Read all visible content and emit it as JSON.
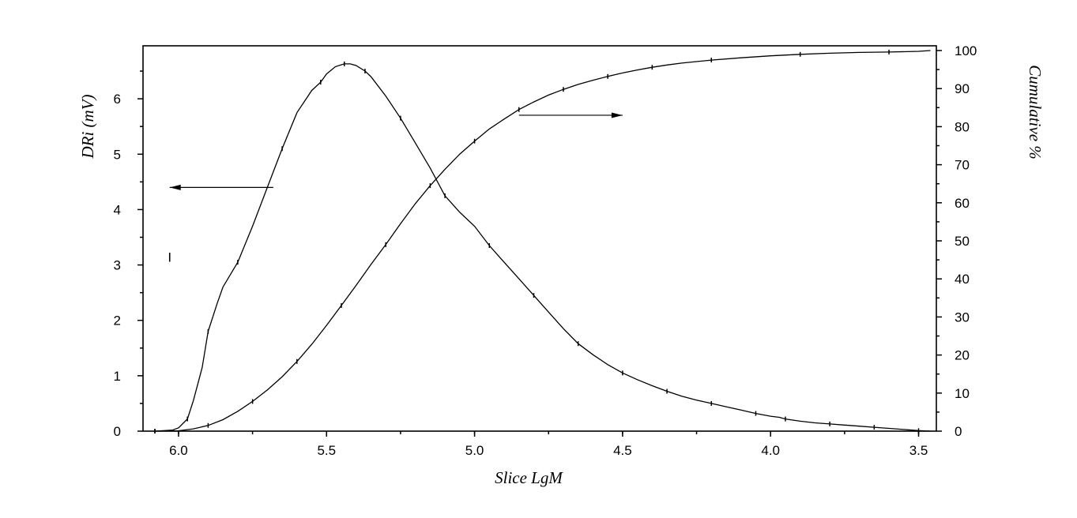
{
  "chart_data": {
    "type": "line",
    "xlabel": "Slice LgM",
    "ylabel_left": "DRi (mV)",
    "ylabel_right": "Cumulative %",
    "x_reversed": true,
    "xlim": [
      6.12,
      3.44
    ],
    "ylim_left": [
      0,
      6.8
    ],
    "ylim_right": [
      0,
      100
    ],
    "xticks": [
      6.0,
      5.5,
      5.0,
      4.5,
      4.0,
      3.5
    ],
    "xtick_labels": [
      "6.0",
      "5.5",
      "5.0",
      "4.5",
      "4.0",
      "3.5"
    ],
    "yticks_left": [
      0,
      1,
      2,
      3,
      4,
      5,
      6
    ],
    "ytick_labels_left": [
      "0",
      "1",
      "2",
      "3",
      "4",
      "5",
      "6"
    ],
    "yticks_right": [
      0,
      10,
      20,
      30,
      40,
      50,
      60,
      70,
      80,
      90,
      100
    ],
    "ytick_labels_right": [
      "0",
      "10",
      "20",
      "30",
      "40",
      "50",
      "60",
      "70",
      "80",
      "90",
      "100"
    ],
    "grid": false,
    "legend": "none",
    "annotations": [
      {
        "text": "I",
        "x": 6.03,
        "y_left": 3.2
      }
    ],
    "arrows": [
      {
        "points_to": "left axis",
        "from": [
          5.68,
          4.4
        ],
        "to": [
          6.03,
          4.4
        ],
        "axis": "left"
      },
      {
        "points_to": "right axis",
        "from": [
          4.85,
          83
        ],
        "to": [
          4.5,
          83
        ],
        "axis": "right"
      }
    ],
    "series": [
      {
        "axis": "left",
        "x": [
          6.08,
          6.02,
          6.0,
          5.97,
          5.95,
          5.92,
          5.9,
          5.87,
          5.85,
          5.8,
          5.75,
          5.7,
          5.65,
          5.6,
          5.55,
          5.52,
          5.5,
          5.47,
          5.44,
          5.42,
          5.4,
          5.37,
          5.35,
          5.3,
          5.25,
          5.2,
          5.15,
          5.1,
          5.05,
          5.0,
          4.95,
          4.9,
          4.85,
          4.8,
          4.75,
          4.7,
          4.65,
          4.6,
          4.55,
          4.5,
          4.45,
          4.4,
          4.35,
          4.3,
          4.25,
          4.2,
          4.15,
          4.1,
          4.05,
          4.0,
          3.97,
          3.95,
          3.9,
          3.85,
          3.8,
          3.75,
          3.7,
          3.65,
          3.6,
          3.55,
          3.5,
          3.46
        ],
        "values": [
          0.0,
          0.02,
          0.06,
          0.22,
          0.55,
          1.15,
          1.8,
          2.3,
          2.6,
          3.05,
          3.7,
          4.4,
          5.1,
          5.75,
          6.15,
          6.3,
          6.45,
          6.58,
          6.63,
          6.63,
          6.6,
          6.5,
          6.4,
          6.05,
          5.65,
          5.2,
          4.75,
          4.25,
          3.95,
          3.7,
          3.35,
          3.05,
          2.75,
          2.45,
          2.15,
          1.85,
          1.58,
          1.38,
          1.2,
          1.05,
          0.93,
          0.82,
          0.72,
          0.63,
          0.56,
          0.5,
          0.44,
          0.38,
          0.32,
          0.27,
          0.25,
          0.22,
          0.18,
          0.15,
          0.13,
          0.11,
          0.09,
          0.07,
          0.05,
          0.03,
          0.01,
          0.0
        ]
      },
      {
        "axis": "right",
        "x": [
          6.08,
          6.0,
          5.95,
          5.9,
          5.85,
          5.8,
          5.75,
          5.7,
          5.65,
          5.6,
          5.55,
          5.5,
          5.45,
          5.4,
          5.35,
          5.3,
          5.25,
          5.2,
          5.15,
          5.1,
          5.05,
          5.0,
          4.95,
          4.9,
          4.85,
          4.8,
          4.75,
          4.7,
          4.65,
          4.6,
          4.55,
          4.5,
          4.45,
          4.4,
          4.35,
          4.3,
          4.2,
          4.1,
          4.0,
          3.9,
          3.8,
          3.7,
          3.6,
          3.5,
          3.46
        ],
        "values": [
          0.0,
          0.1,
          0.6,
          1.5,
          3.0,
          5.2,
          7.8,
          10.8,
          14.3,
          18.3,
          22.8,
          27.8,
          33.0,
          38.3,
          43.8,
          49.0,
          54.5,
          59.8,
          64.5,
          68.8,
          72.8,
          76.2,
          79.4,
          82.0,
          84.5,
          86.5,
          88.3,
          89.8,
          91.1,
          92.2,
          93.2,
          94.1,
          94.9,
          95.6,
          96.2,
          96.7,
          97.5,
          98.1,
          98.6,
          99.0,
          99.3,
          99.5,
          99.6,
          99.8,
          100.0
        ]
      }
    ]
  }
}
